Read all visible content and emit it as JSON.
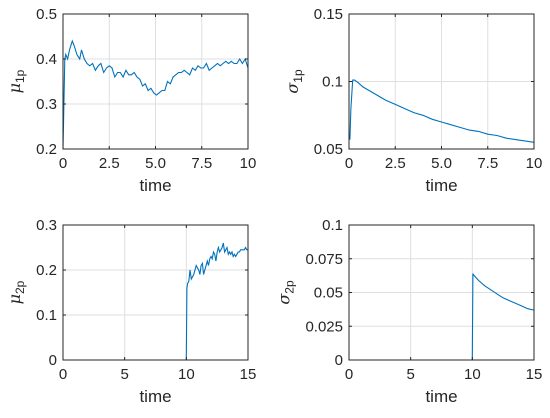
{
  "figure": {
    "line_color": "#0072BD",
    "grid": true
  },
  "chart_data": [
    {
      "type": "line",
      "ylabel": "μ",
      "ylabel_sub": "1p",
      "xlabel": "time",
      "xlim": [
        0,
        10
      ],
      "ylim": [
        0.2,
        0.5
      ],
      "xticks": [
        0,
        2.5,
        5,
        7.5,
        10
      ],
      "xtick_labels": [
        "0",
        "2.5",
        "5.0",
        "7.5",
        "10"
      ],
      "yticks": [
        0.2,
        0.3,
        0.4,
        0.5
      ],
      "ytick_labels": [
        "0.2",
        "0.3",
        "0.4",
        "0.5"
      ],
      "series": [
        {
          "x": [
            0,
            0.1,
            0.15,
            0.25,
            0.35,
            0.5,
            0.6,
            0.75,
            0.9,
            1.0,
            1.15,
            1.3,
            1.45,
            1.6,
            1.75,
            1.9,
            2.05,
            2.2,
            2.35,
            2.5,
            2.65,
            2.8,
            2.95,
            3.1,
            3.25,
            3.4,
            3.55,
            3.7,
            3.85,
            4.0,
            4.15,
            4.3,
            4.45,
            4.6,
            4.75,
            4.9,
            5.05,
            5.2,
            5.35,
            5.5,
            5.65,
            5.8,
            5.95,
            6.1,
            6.25,
            6.4,
            6.55,
            6.7,
            6.85,
            7.0,
            7.15,
            7.3,
            7.45,
            7.6,
            7.75,
            7.9,
            8.05,
            8.2,
            8.35,
            8.5,
            8.65,
            8.8,
            8.95,
            9.1,
            9.25,
            9.4,
            9.55,
            9.7,
            9.85,
            10.0
          ],
          "y": [
            0.2,
            0.4,
            0.41,
            0.4,
            0.42,
            0.44,
            0.43,
            0.41,
            0.4,
            0.42,
            0.4,
            0.39,
            0.385,
            0.39,
            0.375,
            0.385,
            0.39,
            0.37,
            0.38,
            0.385,
            0.38,
            0.36,
            0.37,
            0.37,
            0.36,
            0.375,
            0.365,
            0.365,
            0.37,
            0.36,
            0.355,
            0.34,
            0.345,
            0.33,
            0.335,
            0.325,
            0.32,
            0.325,
            0.33,
            0.33,
            0.35,
            0.345,
            0.36,
            0.365,
            0.37,
            0.37,
            0.375,
            0.37,
            0.365,
            0.38,
            0.375,
            0.385,
            0.38,
            0.38,
            0.39,
            0.375,
            0.38,
            0.385,
            0.39,
            0.385,
            0.39,
            0.395,
            0.39,
            0.395,
            0.39,
            0.39,
            0.4,
            0.39,
            0.4,
            0.38
          ]
        }
      ]
    },
    {
      "type": "line",
      "ylabel": "σ",
      "ylabel_sub": "1p",
      "xlabel": "time",
      "xlim": [
        0,
        10
      ],
      "ylim": [
        0.05,
        0.15
      ],
      "xticks": [
        0,
        2.5,
        5,
        7.5,
        10
      ],
      "xtick_labels": [
        "0",
        "2.5",
        "5.0",
        "7.5",
        "10"
      ],
      "yticks": [
        0.05,
        0.1,
        0.15
      ],
      "ytick_labels": [
        "0.05",
        "0.1",
        "0.15"
      ],
      "series": [
        {
          "x": [
            0.05,
            0.1,
            0.2,
            0.3,
            0.5,
            0.75,
            1.0,
            1.5,
            2.0,
            2.5,
            3.0,
            3.5,
            4.0,
            4.5,
            5.0,
            5.5,
            6.0,
            6.5,
            7.0,
            7.5,
            8.0,
            8.5,
            9.0,
            9.5,
            10.0
          ],
          "y": [
            0.057,
            0.08,
            0.101,
            0.101,
            0.099,
            0.096,
            0.094,
            0.09,
            0.086,
            0.083,
            0.08,
            0.077,
            0.075,
            0.072,
            0.07,
            0.068,
            0.066,
            0.064,
            0.063,
            0.061,
            0.06,
            0.058,
            0.057,
            0.056,
            0.055
          ]
        }
      ]
    },
    {
      "type": "line",
      "ylabel": "μ",
      "ylabel_sub": "2p",
      "xlabel": "time",
      "xlim": [
        0,
        15
      ],
      "ylim": [
        0,
        0.3
      ],
      "xticks": [
        0,
        5,
        10,
        15
      ],
      "xtick_labels": [
        "0",
        "5",
        "10",
        "15"
      ],
      "yticks": [
        0,
        0.1,
        0.2,
        0.3
      ],
      "ytick_labels": [
        "0",
        "0.1",
        "0.2",
        "0.3"
      ],
      "series": [
        {
          "x": [
            0,
            9.9,
            10.0,
            10.05,
            10.1,
            10.2,
            10.3,
            10.4,
            10.5,
            10.6,
            10.7,
            10.8,
            10.9,
            11.0,
            11.1,
            11.2,
            11.3,
            11.4,
            11.5,
            11.6,
            11.7,
            11.8,
            11.9,
            12.0,
            12.1,
            12.2,
            12.3,
            12.4,
            12.5,
            12.6,
            12.7,
            12.8,
            12.9,
            13.0,
            13.1,
            13.2,
            13.3,
            13.4,
            13.5,
            13.6,
            13.7,
            13.8,
            13.9,
            14.0,
            14.1,
            14.2,
            14.3,
            14.4,
            14.5,
            14.6,
            14.7,
            14.8,
            14.9,
            15.0
          ],
          "y": [
            0,
            0,
            0,
            0.16,
            0.17,
            0.175,
            0.2,
            0.18,
            0.185,
            0.19,
            0.2,
            0.21,
            0.205,
            0.2,
            0.19,
            0.21,
            0.215,
            0.19,
            0.2,
            0.21,
            0.22,
            0.21,
            0.225,
            0.23,
            0.225,
            0.24,
            0.235,
            0.22,
            0.24,
            0.25,
            0.24,
            0.245,
            0.25,
            0.26,
            0.24,
            0.245,
            0.25,
            0.235,
            0.24,
            0.235,
            0.24,
            0.23,
            0.235,
            0.23,
            0.235,
            0.24,
            0.24,
            0.245,
            0.245,
            0.245,
            0.245,
            0.25,
            0.245,
            0.245
          ]
        }
      ]
    },
    {
      "type": "line",
      "ylabel": "σ",
      "ylabel_sub": "2p",
      "xlabel": "time",
      "xlim": [
        0,
        15
      ],
      "ylim": [
        0,
        0.1
      ],
      "xticks": [
        0,
        5,
        10,
        15
      ],
      "xtick_labels": [
        "0",
        "5",
        "10",
        "15"
      ],
      "yticks": [
        0,
        0.025,
        0.05,
        0.075,
        0.1
      ],
      "ytick_labels": [
        "0",
        "0.025",
        "0.05",
        "0.075",
        "0.1"
      ],
      "series": [
        {
          "x": [
            0,
            9.95,
            10.0,
            10.05,
            10.1,
            10.3,
            10.5,
            11.0,
            11.5,
            12.0,
            12.5,
            13.0,
            13.5,
            14.0,
            14.5,
            15.0
          ],
          "y": [
            0,
            0,
            0,
            0.064,
            0.063,
            0.061,
            0.059,
            0.055,
            0.052,
            0.049,
            0.046,
            0.044,
            0.042,
            0.04,
            0.038,
            0.037
          ]
        }
      ]
    }
  ]
}
